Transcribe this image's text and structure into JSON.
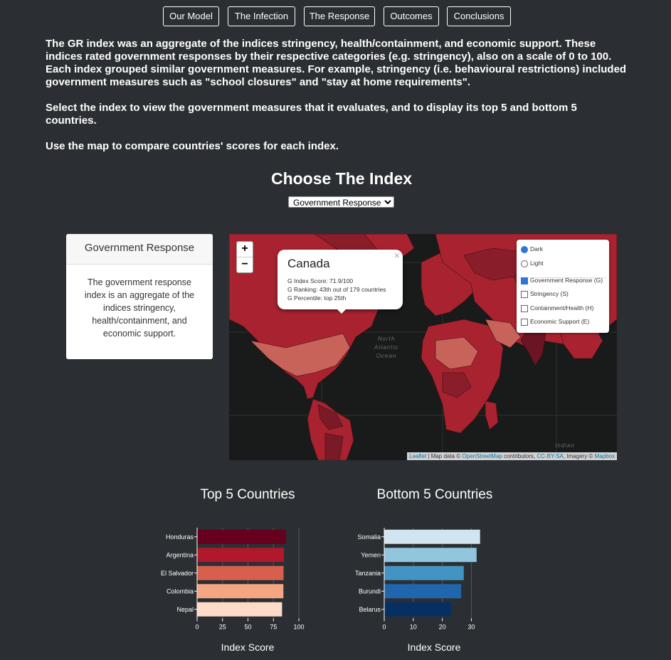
{
  "nav": {
    "items": [
      "Our Model",
      "The Infection",
      "The Response",
      "Outcomes",
      "Conclusions"
    ]
  },
  "intro": {
    "p1": "The GR index was an aggregate of the indices stringency, health/containment, and economic support. These indices rated government responses by their respective categories (e.g. stringency), also on a scale of 0 to 100. Each index grouped similar government measures. For example, stringency (i.e. behavioural restrictions) included government measures such as \"school closures\" and \"stay at home requirements\".",
    "p2": "Select the index to view the government measures that it evaluates, and to display its top 5 and bottom 5 countries.",
    "p3": "Use the map to compare countries' scores for each index."
  },
  "index_section": {
    "title": "Choose The Index",
    "selected": "Government Response"
  },
  "card": {
    "title": "Government Response",
    "body": "The government response index is an aggregate of the indices stringency, health/containment, and economic support."
  },
  "map": {
    "zoom_in": "+",
    "zoom_out": "−",
    "popup": {
      "close": "×",
      "title": "Canada",
      "line1": "G Index Score: 71.9/100",
      "line2": "G Ranking: 43th out of 179 countries",
      "line3": "G Percentile: top 25th"
    },
    "layers": {
      "base": [
        "Dark",
        "Light"
      ],
      "overlays": [
        "Government Response (G)",
        "Stringency (S)",
        "Containment/Health (H)",
        "Economic Support (E)"
      ]
    },
    "ocean_label": "North\nAtlantic\nOcean",
    "indian_label": "Indian",
    "attribution": {
      "leaflet": "Leaflet",
      "sep1": " | Map data © ",
      "osm": "OpenStreetMap",
      "sep2": " contributors, ",
      "cc": "CC-BY-SA",
      "sep3": ", Imagery © ",
      "mapbox": "Mapbox"
    },
    "colors": {
      "land_dark": "#8a1d2a",
      "land": "#a8232f",
      "land_light": "#c8635a",
      "ocean": "#191a1a"
    }
  },
  "chart_data": [
    {
      "type": "bar",
      "orientation": "horizontal",
      "title": "Top 5 Countries",
      "xlabel": "Index Score",
      "categories": [
        "Honduras",
        "Argentina",
        "El Salvador",
        "Colombia",
        "Nepal"
      ],
      "values": [
        87.3,
        85.3,
        85.0,
        84.8,
        83.5
      ],
      "colors": [
        "#67001f",
        "#b2182b",
        "#d6604d",
        "#f4a582",
        "#fddbc7"
      ],
      "xlim": [
        0,
        100
      ],
      "xticks": [
        0,
        25,
        50,
        75,
        100
      ]
    },
    {
      "type": "bar",
      "orientation": "horizontal",
      "title": "Bottom 5 Countries",
      "xlabel": "Index Score",
      "categories": [
        "Somalia",
        "Yemen",
        "Tanzania",
        "Burundi",
        "Belarus"
      ],
      "values": [
        33.0,
        31.8,
        27.4,
        26.5,
        23.0
      ],
      "colors": [
        "#d1e5f0",
        "#92c5de",
        "#4393c3",
        "#2166ac",
        "#053061"
      ],
      "xlim": [
        0,
        37
      ],
      "xticks": [
        0,
        10,
        20,
        30
      ]
    }
  ]
}
